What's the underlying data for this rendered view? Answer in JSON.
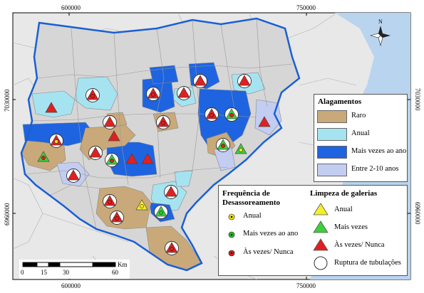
{
  "axes": {
    "top_ticks": [
      "600000",
      "750000"
    ],
    "bottom_ticks": [
      "600000",
      "750000"
    ],
    "left_ticks": [
      "7030000",
      "6960000"
    ],
    "right_ticks": [
      "7030000",
      "6960000"
    ]
  },
  "north": {
    "label": "N"
  },
  "scale_bar": {
    "labels": [
      "0",
      "15",
      "30",
      "60"
    ],
    "unit": "Km"
  },
  "legend_alagamentos": {
    "title": "Alagamentos",
    "items": [
      {
        "label": "Raro",
        "color": "#c9a97a"
      },
      {
        "label": "Anual",
        "color": "#a6e3f0"
      },
      {
        "label": "Mais vezes ao ano",
        "color": "#1e64e0"
      },
      {
        "label": "Entre 2-10 anos",
        "color": "#c3cdf2"
      }
    ]
  },
  "legend_desassoreamento": {
    "title_line1": "Frequência de",
    "title_line2": "Desassoreamento",
    "items": [
      {
        "label": "Anual",
        "color": "#f2e622"
      },
      {
        "label": "Mais vezes ao ano",
        "color": "#2ec42e"
      },
      {
        "label": "Às vezes/ Nunca",
        "color": "#e02020"
      }
    ]
  },
  "legend_limpeza": {
    "title": "Limpeza de galerias",
    "items": [
      {
        "label": "Anual",
        "color": "#f5ee2a",
        "icon": "triangle"
      },
      {
        "label": "Mais vezes",
        "color": "#3ad13a",
        "icon": "triangle"
      },
      {
        "label": "Às vezes/ Nunca",
        "color": "#e02020",
        "icon": "triangle"
      },
      {
        "label": "Ruptura de tubulações",
        "color": "#ffffff",
        "icon": "circle"
      }
    ]
  },
  "colors": {
    "sea": "#b9d4ee",
    "land_outside": "#e8e8e8",
    "region_base": "#d6d6d6",
    "boundary": "#1a5fd4"
  }
}
